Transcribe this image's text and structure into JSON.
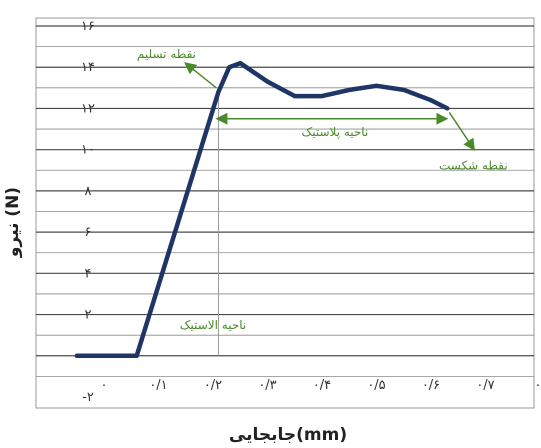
{
  "chart_data": {
    "type": "line",
    "title": "",
    "xlabel": "جابجایی(mm)",
    "ylabel": "نیرو (N)",
    "xlim": [
      -0.1,
      0.8
    ],
    "ylim": [
      -2,
      16
    ],
    "grid": "horizontal",
    "x_ticks": [
      {
        "value": 0,
        "label": "۰"
      },
      {
        "value": 0.1,
        "label": "۰/۱"
      },
      {
        "value": 0.2,
        "label": "۰/۲"
      },
      {
        "value": 0.3,
        "label": "۰/۳"
      },
      {
        "value": 0.4,
        "label": "۰/۴"
      },
      {
        "value": 0.5,
        "label": "۰/۵"
      },
      {
        "value": 0.6,
        "label": "۰/۶"
      },
      {
        "value": 0.7,
        "label": "۰/۷"
      },
      {
        "value": 0.8,
        "label": "۰/"
      }
    ],
    "y_ticks": [
      {
        "value": -2,
        "label": "-۲"
      },
      {
        "value": 2,
        "label": "۲"
      },
      {
        "value": 4,
        "label": "۴"
      },
      {
        "value": 6,
        "label": "۶"
      },
      {
        "value": 8,
        "label": "۸"
      },
      {
        "value": 10,
        "label": "۱۰"
      },
      {
        "value": 12,
        "label": "۱۲"
      },
      {
        "value": 14,
        "label": "۱۴"
      },
      {
        "value": 16,
        "label": "۱۶"
      }
    ],
    "series": [
      {
        "color": "#1f3566",
        "points": [
          [
            -0.05,
            0
          ],
          [
            0.06,
            0
          ],
          [
            0.21,
            12.8
          ],
          [
            0.23,
            14
          ],
          [
            0.25,
            14.2
          ],
          [
            0.3,
            13.3
          ],
          [
            0.35,
            12.6
          ],
          [
            0.4,
            12.6
          ],
          [
            0.45,
            12.9
          ],
          [
            0.5,
            13.1
          ],
          [
            0.55,
            12.9
          ],
          [
            0.6,
            12.4
          ],
          [
            0.63,
            12
          ]
        ]
      }
    ],
    "annotations": [
      {
        "text": "نقطه تسلیم",
        "x": 0.21,
        "y": 12.8,
        "color": "#4a8a2a"
      },
      {
        "text": "ناحیه پلاستیک",
        "x_range": [
          0.21,
          0.63
        ],
        "y": 11.5,
        "color": "#4a8a2a"
      },
      {
        "text": "نقطه شکست",
        "x": 0.63,
        "y": 12,
        "color": "#4a8a2a"
      },
      {
        "text": "ناحیه الاستیک",
        "x": 0.2,
        "y": 1.3,
        "color": "#4a8a2a"
      }
    ]
  }
}
